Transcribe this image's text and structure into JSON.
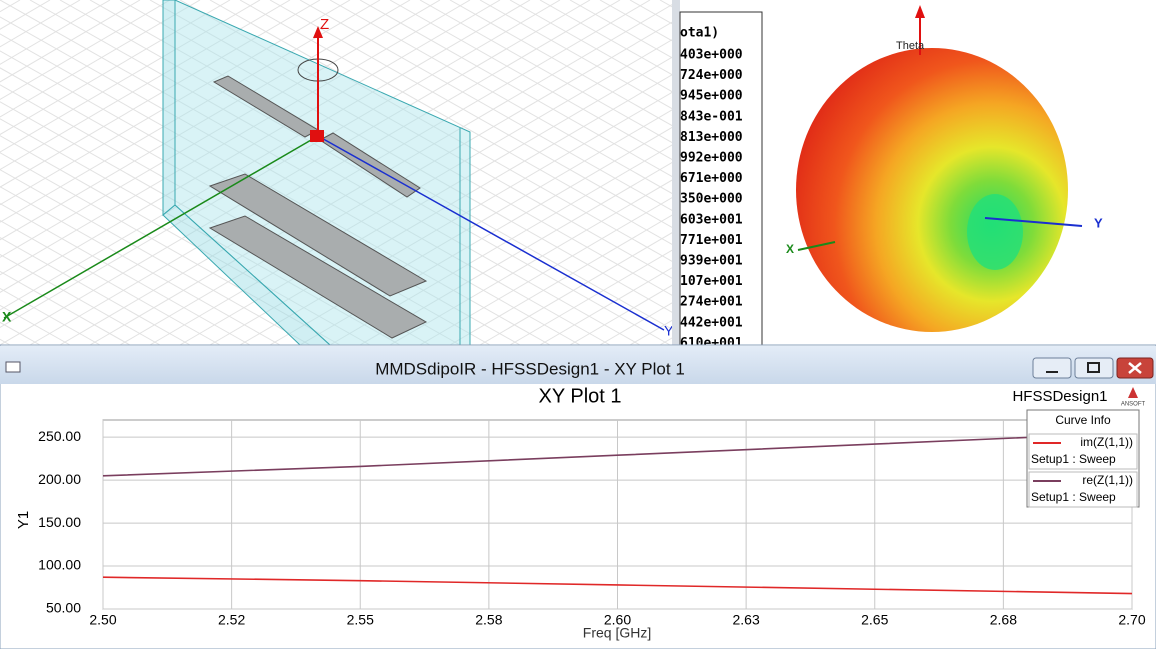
{
  "model_view": {
    "axis_labels": {
      "z": "Z",
      "y": "Y",
      "x": "X"
    }
  },
  "pattern_view": {
    "legend_title": "ota1)",
    "legend_values": [
      "403e+000",
      "724e+000",
      "945e+000",
      "843e-001",
      "813e+000",
      "992e+000",
      "671e+000",
      "350e+000",
      "603e+001",
      "771e+001",
      "939e+001",
      "107e+001",
      "274e+001",
      "442e+001",
      "610e+001"
    ],
    "axis_labels": {
      "theta": "Theta",
      "y": "Y",
      "x": "X"
    }
  },
  "window": {
    "title": "MMDSdipoIR - HFSSDesign1 - XY Plot 1",
    "design_label": "HFSSDesign1",
    "logo": "ANSOFT"
  },
  "chart_data": {
    "type": "line",
    "title": "XY Plot 1",
    "x_label": "Freq [GHz]",
    "y_label": "Y1",
    "x": [
      2.5,
      2.55,
      2.6,
      2.65,
      2.7
    ],
    "series": [
      {
        "name": "im(Z(1,1))",
        "setup": "Setup1 : Sweep",
        "color": "#e02828",
        "values": [
          87,
          83,
          78,
          73,
          68
        ]
      },
      {
        "name": "re(Z(1,1))",
        "setup": "Setup1 : Sweep",
        "color": "#7a3e5e",
        "values": [
          205,
          216,
          229,
          242,
          255
        ]
      }
    ],
    "legend_title": "Curve Info",
    "xlim": [
      2.5,
      2.7
    ],
    "ylim": [
      50,
      270
    ],
    "xticks": [
      {
        "value": 2.5,
        "label": "2.50"
      },
      {
        "value": 2.525,
        "label": "2.52"
      },
      {
        "value": 2.55,
        "label": "2.55"
      },
      {
        "value": 2.575,
        "label": "2.58"
      },
      {
        "value": 2.6,
        "label": "2.60"
      },
      {
        "value": 2.625,
        "label": "2.63"
      },
      {
        "value": 2.65,
        "label": "2.65"
      },
      {
        "value": 2.675,
        "label": "2.68"
      },
      {
        "value": 2.7,
        "label": "2.70"
      }
    ],
    "yticks": [
      {
        "value": 50,
        "label": "50.00"
      },
      {
        "value": 100,
        "label": "100.00"
      },
      {
        "value": 150,
        "label": "150.00"
      },
      {
        "value": 200,
        "label": "200.00"
      },
      {
        "value": 250,
        "label": "250.00"
      }
    ],
    "grid": true
  }
}
